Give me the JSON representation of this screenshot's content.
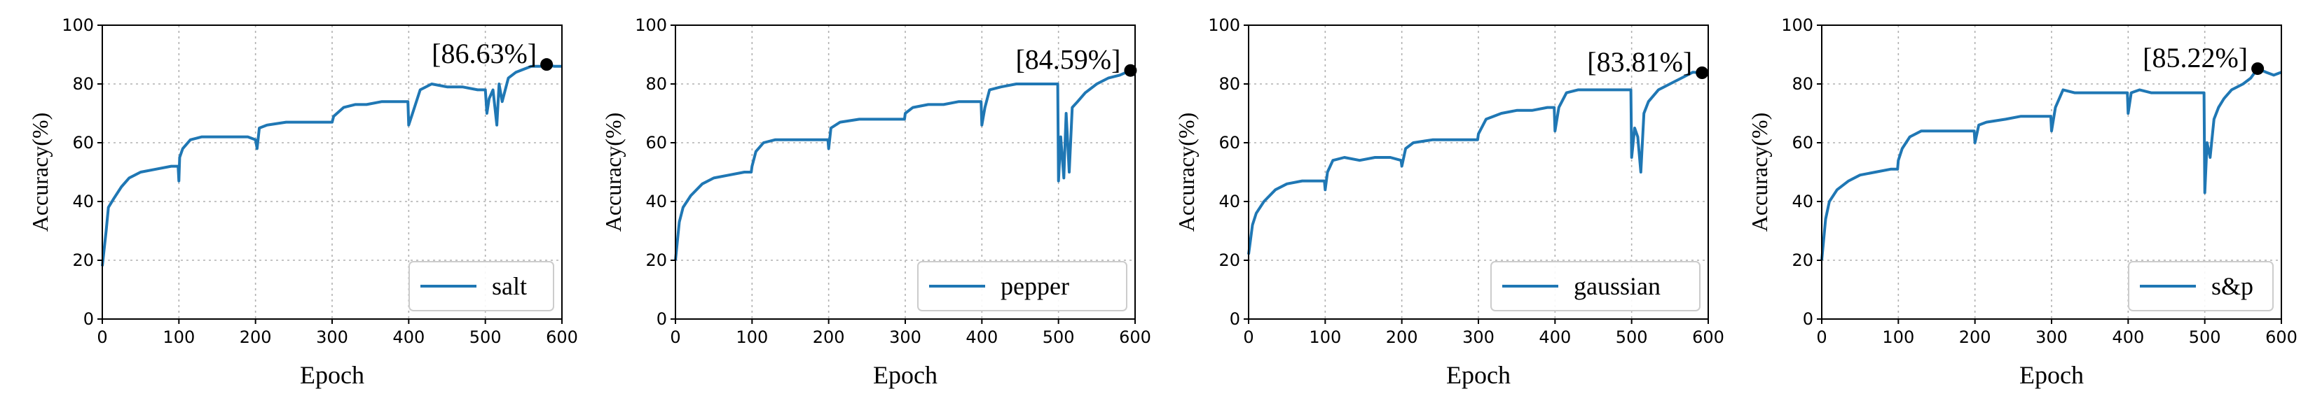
{
  "chart_data": [
    {
      "type": "line",
      "xlabel": "Epoch",
      "ylabel": "Accuracy(%)",
      "xlim": [
        0,
        600
      ],
      "ylim": [
        0,
        100
      ],
      "xticks": [
        0,
        100,
        200,
        300,
        400,
        500,
        600
      ],
      "yticks": [
        0,
        20,
        40,
        60,
        80,
        100
      ],
      "grid": true,
      "legend": "lower-right",
      "color": "#1f77b4",
      "series": [
        {
          "name": "salt",
          "points": [
            [
              0,
              18
            ],
            [
              5,
              30
            ],
            [
              8,
              38
            ],
            [
              15,
              41
            ],
            [
              25,
              45
            ],
            [
              35,
              48
            ],
            [
              50,
              50
            ],
            [
              70,
              51
            ],
            [
              90,
              52
            ],
            [
              99,
              52
            ],
            [
              100,
              47
            ],
            [
              101,
              55
            ],
            [
              105,
              58
            ],
            [
              115,
              61
            ],
            [
              130,
              62
            ],
            [
              150,
              62
            ],
            [
              170,
              62
            ],
            [
              190,
              62
            ],
            [
              200,
              61
            ],
            [
              202,
              58
            ],
            [
              205,
              65
            ],
            [
              215,
              66
            ],
            [
              240,
              67
            ],
            [
              260,
              67
            ],
            [
              280,
              67
            ],
            [
              300,
              67
            ],
            [
              302,
              69
            ],
            [
              315,
              72
            ],
            [
              330,
              73
            ],
            [
              345,
              73
            ],
            [
              365,
              74
            ],
            [
              385,
              74
            ],
            [
              399,
              74
            ],
            [
              400,
              66
            ],
            [
              405,
              70
            ],
            [
              415,
              78
            ],
            [
              430,
              80
            ],
            [
              450,
              79
            ],
            [
              470,
              79
            ],
            [
              490,
              78
            ],
            [
              500,
              78
            ],
            [
              502,
              70
            ],
            [
              505,
              75
            ],
            [
              510,
              78
            ],
            [
              515,
              66
            ],
            [
              518,
              80
            ],
            [
              522,
              74
            ],
            [
              530,
              82
            ],
            [
              540,
              84
            ],
            [
              550,
              85
            ],
            [
              560,
              86
            ],
            [
              575,
              86
            ],
            [
              580,
              86.63
            ],
            [
              590,
              86
            ],
            [
              600,
              86
            ]
          ]
        }
      ],
      "annotation": {
        "text": "[86.63%]",
        "x": 580,
        "y": 86.63
      }
    },
    {
      "type": "line",
      "xlabel": "Epoch",
      "ylabel": "Accuracy(%)",
      "xlim": [
        0,
        600
      ],
      "ylim": [
        0,
        100
      ],
      "xticks": [
        0,
        100,
        200,
        300,
        400,
        500,
        600
      ],
      "yticks": [
        0,
        20,
        40,
        60,
        80,
        100
      ],
      "grid": true,
      "legend": "lower-right",
      "color": "#1f77b4",
      "series": [
        {
          "name": "pepper",
          "points": [
            [
              0,
              20
            ],
            [
              5,
              33
            ],
            [
              10,
              38
            ],
            [
              20,
              42
            ],
            [
              35,
              46
            ],
            [
              50,
              48
            ],
            [
              70,
              49
            ],
            [
              90,
              50
            ],
            [
              99,
              50
            ],
            [
              100,
              52
            ],
            [
              105,
              57
            ],
            [
              115,
              60
            ],
            [
              130,
              61
            ],
            [
              150,
              61
            ],
            [
              170,
              61
            ],
            [
              190,
              61
            ],
            [
              199,
              61
            ],
            [
              200,
              58
            ],
            [
              203,
              65
            ],
            [
              215,
              67
            ],
            [
              240,
              68
            ],
            [
              260,
              68
            ],
            [
              280,
              68
            ],
            [
              299,
              68
            ],
            [
              300,
              70
            ],
            [
              310,
              72
            ],
            [
              330,
              73
            ],
            [
              350,
              73
            ],
            [
              370,
              74
            ],
            [
              390,
              74
            ],
            [
              399,
              74
            ],
            [
              400,
              66
            ],
            [
              404,
              72
            ],
            [
              410,
              78
            ],
            [
              425,
              79
            ],
            [
              445,
              80
            ],
            [
              470,
              80
            ],
            [
              490,
              80
            ],
            [
              499,
              80
            ],
            [
              500,
              47
            ],
            [
              503,
              62
            ],
            [
              507,
              48
            ],
            [
              510,
              70
            ],
            [
              514,
              50
            ],
            [
              518,
              72
            ],
            [
              525,
              74
            ],
            [
              535,
              77
            ],
            [
              550,
              80
            ],
            [
              565,
              82
            ],
            [
              580,
              83
            ],
            [
              594,
              84.59
            ],
            [
              600,
              83
            ]
          ]
        }
      ],
      "annotation": {
        "text": "[84.59%]",
        "x": 594,
        "y": 84.59
      }
    },
    {
      "type": "line",
      "xlabel": "Epoch",
      "ylabel": "Accuracy(%)",
      "xlim": [
        0,
        600
      ],
      "ylim": [
        0,
        100
      ],
      "xticks": [
        0,
        100,
        200,
        300,
        400,
        500,
        600
      ],
      "yticks": [
        0,
        20,
        40,
        60,
        80,
        100
      ],
      "grid": true,
      "legend": "lower-right",
      "color": "#1f77b4",
      "series": [
        {
          "name": "gaussian",
          "points": [
            [
              0,
              22
            ],
            [
              5,
              32
            ],
            [
              10,
              36
            ],
            [
              20,
              40
            ],
            [
              35,
              44
            ],
            [
              50,
              46
            ],
            [
              70,
              47
            ],
            [
              90,
              47
            ],
            [
              99,
              47
            ],
            [
              100,
              44
            ],
            [
              103,
              50
            ],
            [
              110,
              54
            ],
            [
              125,
              55
            ],
            [
              145,
              54
            ],
            [
              165,
              55
            ],
            [
              185,
              55
            ],
            [
              199,
              54
            ],
            [
              200,
              52
            ],
            [
              205,
              58
            ],
            [
              215,
              60
            ],
            [
              240,
              61
            ],
            [
              260,
              61
            ],
            [
              280,
              61
            ],
            [
              299,
              61
            ],
            [
              300,
              63
            ],
            [
              310,
              68
            ],
            [
              330,
              70
            ],
            [
              350,
              71
            ],
            [
              370,
              71
            ],
            [
              390,
              72
            ],
            [
              399,
              72
            ],
            [
              400,
              64
            ],
            [
              405,
              72
            ],
            [
              415,
              77
            ],
            [
              430,
              78
            ],
            [
              450,
              78
            ],
            [
              470,
              78
            ],
            [
              490,
              78
            ],
            [
              499,
              78
            ],
            [
              500,
              55
            ],
            [
              504,
              65
            ],
            [
              508,
              62
            ],
            [
              512,
              50
            ],
            [
              516,
              70
            ],
            [
              522,
              74
            ],
            [
              535,
              78
            ],
            [
              550,
              80
            ],
            [
              565,
              82
            ],
            [
              580,
              84
            ],
            [
              592,
              83.81
            ],
            [
              600,
              84
            ]
          ]
        }
      ],
      "annotation": {
        "text": "[83.81%]",
        "x": 592,
        "y": 83.81
      }
    },
    {
      "type": "line",
      "xlabel": "Epoch",
      "ylabel": "Accuracy(%)",
      "xlim": [
        0,
        600
      ],
      "ylim": [
        0,
        100
      ],
      "xticks": [
        0,
        100,
        200,
        300,
        400,
        500,
        600
      ],
      "yticks": [
        0,
        20,
        40,
        60,
        80,
        100
      ],
      "grid": true,
      "legend": "lower-right",
      "color": "#1f77b4",
      "series": [
        {
          "name": "s&p",
          "points": [
            [
              0,
              20
            ],
            [
              5,
              34
            ],
            [
              10,
              40
            ],
            [
              20,
              44
            ],
            [
              35,
              47
            ],
            [
              50,
              49
            ],
            [
              70,
              50
            ],
            [
              90,
              51
            ],
            [
              99,
              51
            ],
            [
              100,
              54
            ],
            [
              105,
              58
            ],
            [
              115,
              62
            ],
            [
              130,
              64
            ],
            [
              150,
              64
            ],
            [
              170,
              64
            ],
            [
              190,
              64
            ],
            [
              199,
              64
            ],
            [
              200,
              60
            ],
            [
              205,
              66
            ],
            [
              215,
              67
            ],
            [
              240,
              68
            ],
            [
              260,
              69
            ],
            [
              280,
              69
            ],
            [
              299,
              69
            ],
            [
              300,
              64
            ],
            [
              305,
              72
            ],
            [
              315,
              78
            ],
            [
              330,
              77
            ],
            [
              350,
              77
            ],
            [
              370,
              77
            ],
            [
              390,
              77
            ],
            [
              399,
              77
            ],
            [
              400,
              70
            ],
            [
              404,
              77
            ],
            [
              415,
              78
            ],
            [
              430,
              77
            ],
            [
              450,
              77
            ],
            [
              470,
              77
            ],
            [
              490,
              77
            ],
            [
              499,
              77
            ],
            [
              500,
              43
            ],
            [
              503,
              60
            ],
            [
              507,
              55
            ],
            [
              512,
              68
            ],
            [
              518,
              72
            ],
            [
              525,
              75
            ],
            [
              535,
              78
            ],
            [
              550,
              80
            ],
            [
              560,
              82
            ],
            [
              569,
              85.22
            ],
            [
              580,
              84
            ],
            [
              590,
              83
            ],
            [
              600,
              84
            ]
          ]
        }
      ],
      "annotation": {
        "text": "[85.22%]",
        "x": 569,
        "y": 85.22
      }
    }
  ]
}
